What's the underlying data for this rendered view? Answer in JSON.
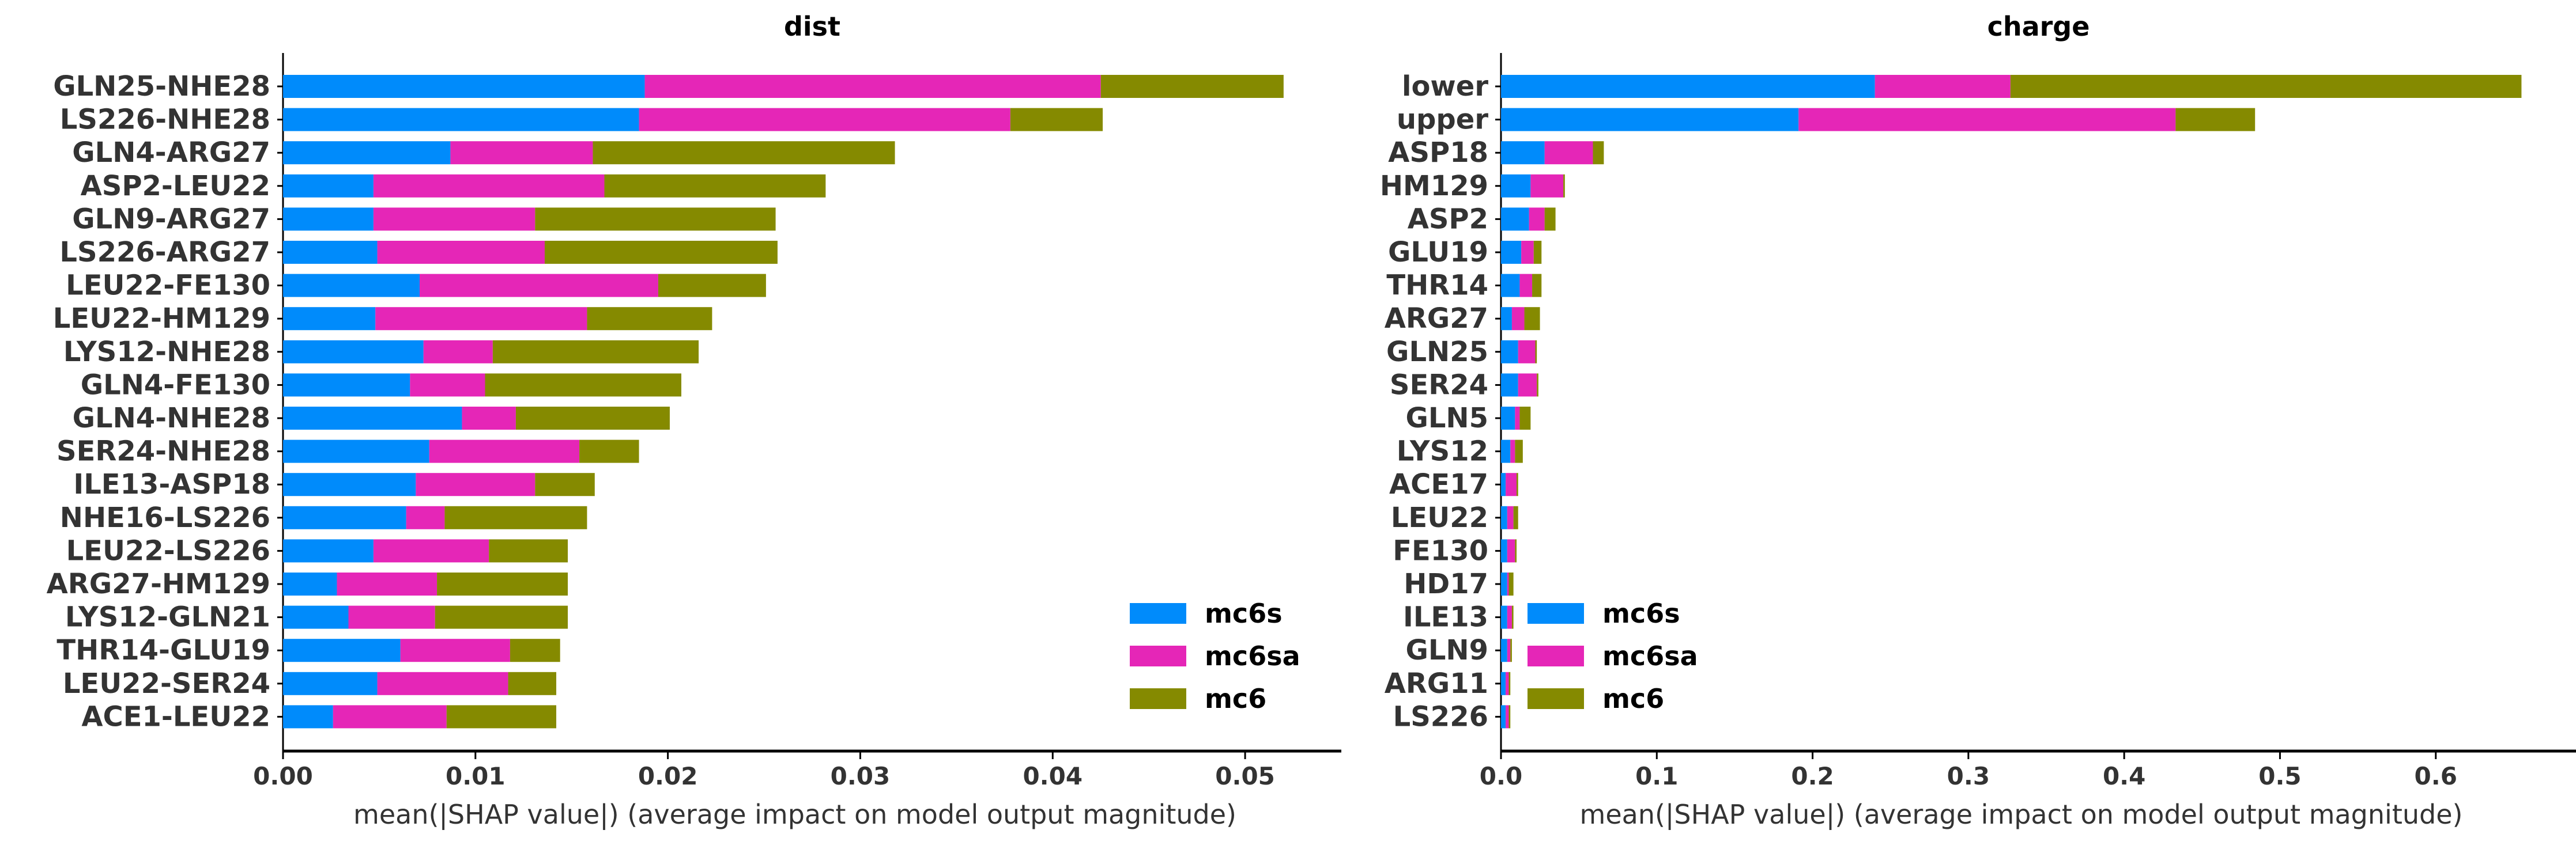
{
  "colors": {
    "mc6s": "#008bfb",
    "mc6sa": "#e526b7",
    "mc6": "#858a00",
    "axis": "#000000",
    "text": "#333333"
  },
  "chart_data": [
    {
      "type": "bar",
      "orientation": "horizontal",
      "stacked": true,
      "title": "dist",
      "xlabel": "mean(|SHAP value|) (average impact on model output magnitude)",
      "xlim": [
        0,
        0.055
      ],
      "xticks": [
        "0.00",
        "0.01",
        "0.02",
        "0.03",
        "0.04",
        "0.05"
      ],
      "xtick_values": [
        0,
        0.01,
        0.02,
        0.03,
        0.04,
        0.05
      ],
      "legend_position": "lower right",
      "categories": [
        "GLN25-NHE28",
        "LS226-NHE28",
        "GLN4-ARG27",
        "ASP2-LEU22",
        "GLN9-ARG27",
        "LS226-ARG27",
        "LEU22-FE130",
        "LEU22-HM129",
        "LYS12-NHE28",
        "GLN4-FE130",
        "GLN4-NHE28",
        "SER24-NHE28",
        "ILE13-ASP18",
        "NHE16-LS226",
        "LEU22-LS226",
        "ARG27-HM129",
        "LYS12-GLN21",
        "THR14-GLU19",
        "LEU22-SER24",
        "ACE1-LEU22"
      ],
      "series": [
        {
          "name": "mc6s",
          "values": [
            0.0188,
            0.0185,
            0.0087,
            0.0047,
            0.0047,
            0.0049,
            0.0071,
            0.0048,
            0.0073,
            0.0066,
            0.0093,
            0.0076,
            0.0069,
            0.0064,
            0.0047,
            0.0028,
            0.0034,
            0.0061,
            0.0049,
            0.0026
          ]
        },
        {
          "name": "mc6sa",
          "values": [
            0.0237,
            0.0193,
            0.0074,
            0.012,
            0.0084,
            0.0087,
            0.0124,
            0.011,
            0.0036,
            0.0039,
            0.0028,
            0.0078,
            0.0062,
            0.002,
            0.006,
            0.0052,
            0.0045,
            0.0057,
            0.0068,
            0.0059
          ]
        },
        {
          "name": "mc6",
          "values": [
            0.0095,
            0.0048,
            0.0157,
            0.0115,
            0.0125,
            0.0121,
            0.0056,
            0.0065,
            0.0107,
            0.0102,
            0.008,
            0.0031,
            0.0031,
            0.0074,
            0.0041,
            0.0068,
            0.0069,
            0.0026,
            0.0025,
            0.0057
          ]
        }
      ]
    },
    {
      "type": "bar",
      "orientation": "horizontal",
      "stacked": true,
      "title": "charge",
      "xlabel": "mean(|SHAP value|) (average impact on model output magnitude)",
      "xlim": [
        0,
        0.69
      ],
      "xticks": [
        "0.0",
        "0.1",
        "0.2",
        "0.3",
        "0.4",
        "0.5",
        "0.6"
      ],
      "xtick_values": [
        0,
        0.1,
        0.2,
        0.3,
        0.4,
        0.5,
        0.6
      ],
      "legend_position": "lower left",
      "categories": [
        "lower",
        "upper",
        "ASP18",
        "HM129",
        "ASP2",
        "GLU19",
        "THR14",
        "ARG27",
        "GLN25",
        "SER24",
        "GLN5",
        "LYS12",
        "ACE17",
        "LEU22",
        "FE130",
        "HD17",
        "ILE13",
        "GLN9",
        "ARG11",
        "LS226"
      ],
      "series": [
        {
          "name": "mc6s",
          "values": [
            0.24,
            0.191,
            0.028,
            0.019,
            0.018,
            0.013,
            0.012,
            0.007,
            0.011,
            0.011,
            0.009,
            0.006,
            0.003,
            0.004,
            0.004,
            0.004,
            0.004,
            0.004,
            0.003,
            0.003
          ]
        },
        {
          "name": "mc6sa",
          "values": [
            0.087,
            0.242,
            0.031,
            0.021,
            0.01,
            0.008,
            0.008,
            0.008,
            0.011,
            0.012,
            0.003,
            0.003,
            0.007,
            0.004,
            0.005,
            0.001,
            0.003,
            0.002,
            0.002,
            0.002
          ]
        },
        {
          "name": "mc6",
          "values": [
            0.328,
            0.051,
            0.007,
            0.001,
            0.007,
            0.005,
            0.006,
            0.01,
            0.001,
            0.001,
            0.007,
            0.005,
            0.001,
            0.003,
            0.001,
            0.003,
            0.001,
            0.001,
            0.001,
            0.001
          ]
        }
      ]
    }
  ]
}
